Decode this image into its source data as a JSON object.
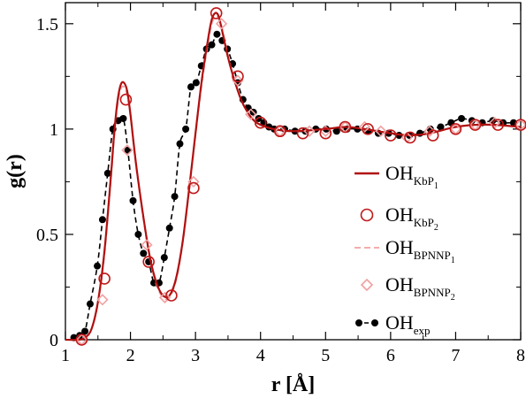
{
  "chart_data": {
    "type": "line",
    "title": "",
    "xlabel": "r [Å]",
    "ylabel": "g(r)",
    "xlim": [
      1,
      8
    ],
    "ylim": [
      0,
      1.6
    ],
    "grid": false,
    "legend_position": "right",
    "x_ticks": [
      "1",
      "2",
      "3",
      "4",
      "5",
      "6",
      "7",
      "8"
    ],
    "y_ticks": [
      "0",
      "0.5",
      "1",
      "1.5"
    ],
    "series": [
      {
        "name_main": "OH",
        "name_sub": "KbP",
        "name_subsub": "1",
        "style": "solid-line",
        "color": "#b01010",
        "x": [
          1.0,
          1.2,
          1.3,
          1.4,
          1.5,
          1.6,
          1.7,
          1.75,
          1.8,
          1.85,
          1.9,
          1.95,
          2.0,
          2.05,
          2.1,
          2.2,
          2.3,
          2.4,
          2.5,
          2.6,
          2.7,
          2.8,
          2.9,
          3.0,
          3.1,
          3.2,
          3.25,
          3.3,
          3.35,
          3.4,
          3.5,
          3.6,
          3.7,
          3.8,
          3.9,
          4.0,
          4.2,
          4.5,
          5.0,
          5.3,
          5.6,
          6.0,
          6.3,
          6.6,
          7.0,
          7.3,
          7.6,
          8.0
        ],
        "y": [
          0.0,
          0.0,
          0.01,
          0.05,
          0.18,
          0.42,
          0.78,
          0.98,
          1.13,
          1.21,
          1.22,
          1.18,
          1.07,
          0.93,
          0.8,
          0.58,
          0.39,
          0.27,
          0.21,
          0.21,
          0.29,
          0.46,
          0.71,
          0.98,
          1.24,
          1.44,
          1.52,
          1.55,
          1.54,
          1.48,
          1.34,
          1.23,
          1.14,
          1.08,
          1.04,
          1.02,
          1.0,
          0.99,
          1.0,
          1.01,
          1.0,
          0.98,
          0.97,
          0.98,
          1.01,
          1.02,
          1.02,
          1.01
        ]
      },
      {
        "name_main": "OH",
        "name_sub": "KbP",
        "name_subsub": "2",
        "style": "open-circle",
        "color": "#c01818",
        "x": [
          1.25,
          1.6,
          1.93,
          2.28,
          2.63,
          2.97,
          3.32,
          3.65,
          4.0,
          4.3,
          4.65,
          5.0,
          5.3,
          5.65,
          6.0,
          6.3,
          6.65,
          7.0,
          7.3,
          7.65,
          8.0
        ],
        "y": [
          0.0,
          0.29,
          1.14,
          0.37,
          0.21,
          0.72,
          1.55,
          1.25,
          1.03,
          0.99,
          0.98,
          0.98,
          1.01,
          1.0,
          0.97,
          0.96,
          0.97,
          1.0,
          1.02,
          1.02,
          1.02
        ]
      },
      {
        "name_main": "OH",
        "name_sub": "BPNNP",
        "name_subsub": "1",
        "style": "dashed-line",
        "color": "#f2a0a0",
        "x": [
          1.0,
          1.2,
          1.3,
          1.4,
          1.5,
          1.6,
          1.7,
          1.75,
          1.8,
          1.85,
          1.9,
          1.95,
          2.0,
          2.05,
          2.1,
          2.2,
          2.3,
          2.4,
          2.5,
          2.6,
          2.7,
          2.8,
          2.9,
          3.0,
          3.1,
          3.2,
          3.25,
          3.3,
          3.35,
          3.4,
          3.5,
          3.6,
          3.7,
          3.8,
          3.9,
          4.0,
          4.2,
          4.5,
          5.0,
          5.3,
          5.6,
          6.0,
          6.3,
          6.6,
          7.0,
          7.3,
          7.6,
          8.0
        ],
        "y": [
          0.0,
          0.0,
          0.01,
          0.05,
          0.17,
          0.4,
          0.76,
          0.96,
          1.11,
          1.19,
          1.2,
          1.16,
          1.06,
          0.92,
          0.79,
          0.57,
          0.38,
          0.26,
          0.2,
          0.2,
          0.28,
          0.45,
          0.7,
          0.97,
          1.22,
          1.42,
          1.5,
          1.53,
          1.53,
          1.49,
          1.35,
          1.23,
          1.14,
          1.08,
          1.04,
          1.02,
          1.0,
          0.99,
          1.0,
          1.01,
          1.0,
          0.98,
          0.97,
          0.98,
          1.01,
          1.02,
          1.02,
          1.01
        ]
      },
      {
        "name_main": "OH",
        "name_sub": "BPNNP",
        "name_subsub": "2",
        "style": "open-diamond",
        "color": "#f0a0a0",
        "x": [
          1.25,
          1.57,
          1.95,
          2.25,
          2.53,
          2.97,
          3.4,
          3.65,
          3.85,
          4.3,
          4.75,
          5.0,
          5.3,
          5.6,
          5.85,
          6.25,
          6.6,
          7.0,
          7.3,
          7.6,
          8.0
        ],
        "y": [
          0.0,
          0.19,
          0.9,
          0.45,
          0.2,
          0.75,
          1.5,
          1.23,
          1.07,
          0.99,
          0.99,
          0.99,
          1.01,
          1.01,
          0.99,
          0.96,
          0.99,
          1.0,
          1.02,
          1.03,
          1.02
        ]
      },
      {
        "name_main": "OH",
        "name_sub": "exp",
        "name_subsub": "",
        "style": "dashed-line-filled-circle",
        "color": "#000000",
        "x": [
          1.13,
          1.22,
          1.3,
          1.38,
          1.49,
          1.57,
          1.65,
          1.73,
          1.81,
          1.89,
          1.96,
          2.04,
          2.12,
          2.2,
          2.28,
          2.36,
          2.44,
          2.52,
          2.6,
          2.68,
          2.76,
          2.85,
          2.93,
          3.01,
          3.09,
          3.17,
          3.25,
          3.33,
          3.41,
          3.49,
          3.57,
          3.65,
          3.73,
          3.81,
          3.89,
          3.97,
          4.05,
          4.13,
          4.21,
          4.37,
          4.53,
          4.69,
          4.85,
          5.01,
          5.17,
          5.33,
          5.49,
          5.65,
          5.81,
          5.97,
          6.13,
          6.29,
          6.45,
          6.61,
          6.77,
          6.93,
          7.09,
          7.25,
          7.41,
          7.57,
          7.73,
          7.89
        ],
        "y": [
          0.01,
          0.02,
          0.04,
          0.17,
          0.35,
          0.57,
          0.79,
          1.0,
          1.04,
          1.05,
          0.9,
          0.66,
          0.5,
          0.41,
          0.37,
          0.27,
          0.27,
          0.39,
          0.53,
          0.68,
          0.93,
          1.0,
          1.2,
          1.22,
          1.3,
          1.38,
          1.4,
          1.45,
          1.42,
          1.38,
          1.31,
          1.22,
          1.14,
          1.1,
          1.08,
          1.05,
          1.03,
          1.01,
          1.0,
          1.0,
          0.99,
          0.99,
          1.0,
          1.0,
          0.99,
          1.0,
          1.0,
          0.99,
          0.98,
          0.98,
          0.97,
          0.97,
          0.98,
          1.0,
          1.01,
          1.03,
          1.05,
          1.04,
          1.03,
          1.04,
          1.03,
          1.03
        ]
      }
    ]
  }
}
